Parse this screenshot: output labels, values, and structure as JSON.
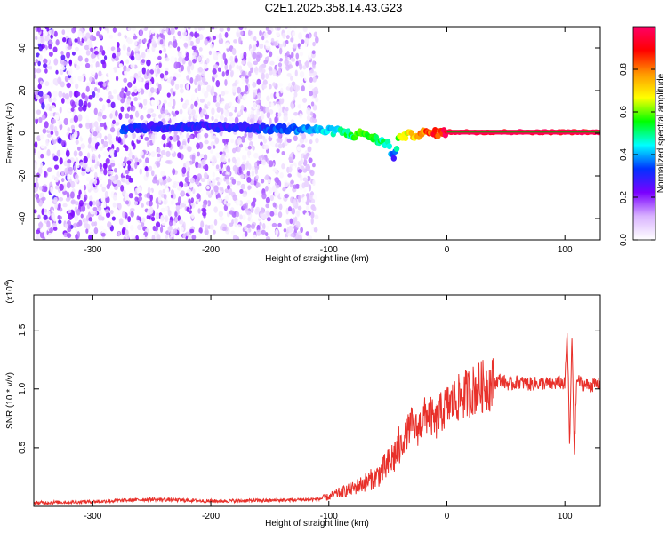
{
  "title": "C2E1.2025.358.14.43.G23",
  "chart_data": [
    {
      "type": "heatmap",
      "xlabel": "Height of straight line (km)",
      "ylabel": "Frequency (Hz)",
      "xlim": [
        -350,
        130
      ],
      "ylim": [
        -50,
        50
      ],
      "xticks": [
        -300,
        -200,
        -100,
        0,
        100
      ],
      "yticks": [
        -40,
        -20,
        0,
        20,
        40
      ],
      "colorbar": {
        "label": "Normalized spectral amplitude",
        "range": [
          0,
          1
        ],
        "ticks": [
          "0.0",
          "0.2",
          "0.4",
          "0.6",
          "0.8"
        ],
        "colors": [
          "#ffffff",
          "#d9b3ff",
          "#7a00ff",
          "#0033ff",
          "#00ffff",
          "#00ff00",
          "#ffff00",
          "#ff9900",
          "#ff0000",
          "#ff0066"
        ]
      },
      "noise_extent_x": [
        -350,
        -110
      ],
      "signal_track": [
        {
          "x": -275,
          "y": 2,
          "amp": 0.35
        },
        {
          "x": -250,
          "y": 3,
          "amp": 0.3
        },
        {
          "x": -170,
          "y": 3,
          "amp": 0.3
        },
        {
          "x": -150,
          "y": 2,
          "amp": 0.35
        },
        {
          "x": -120,
          "y": 2,
          "amp": 0.4
        },
        {
          "x": -100,
          "y": 1,
          "amp": 0.45
        },
        {
          "x": -90,
          "y": 1,
          "amp": 0.5
        },
        {
          "x": -80,
          "y": -1,
          "amp": 0.55
        },
        {
          "x": -70,
          "y": 0,
          "amp": 0.6
        },
        {
          "x": -60,
          "y": -3,
          "amp": 0.55
        },
        {
          "x": -50,
          "y": -5,
          "amp": 0.5
        },
        {
          "x": -45,
          "y": -12,
          "amp": 0.3
        },
        {
          "x": -40,
          "y": -1,
          "amp": 0.65
        },
        {
          "x": -30,
          "y": -1,
          "amp": 0.75
        },
        {
          "x": -20,
          "y": 0,
          "amp": 0.85
        },
        {
          "x": -10,
          "y": 0,
          "amp": 0.9
        },
        {
          "x": 0,
          "y": 0.5,
          "amp": 1.0
        },
        {
          "x": 50,
          "y": 0.5,
          "amp": 1.0
        },
        {
          "x": 100,
          "y": 0.5,
          "amp": 1.0
        },
        {
          "x": 130,
          "y": 0.5,
          "amp": 1.0
        }
      ]
    },
    {
      "type": "line",
      "xlabel": "Height of straight line (km)",
      "ylabel": "SNR (10 * v/v)",
      "y_multiplier": "(x10",
      "y_multiplier_exp": "4",
      "xlim": [
        -350,
        130
      ],
      "ylim": [
        0,
        18000
      ],
      "xticks": [
        -300,
        -200,
        -100,
        0,
        100
      ],
      "yticks": [
        5000,
        10000,
        15000
      ],
      "ytick_labels": [
        "0.5",
        "1.0",
        "1.5"
      ],
      "series": [
        {
          "color": "#e8302a",
          "x": [
            -350,
            -300,
            -250,
            -200,
            -150,
            -110,
            -100,
            -90,
            -80,
            -70,
            -60,
            -50,
            -40,
            -35,
            -30,
            -25,
            -20,
            -15,
            -10,
            -5,
            0,
            10,
            20,
            30,
            40,
            45,
            50,
            55,
            60,
            70,
            80,
            90,
            95,
            100,
            102,
            104,
            106,
            108,
            110,
            115,
            120,
            130
          ],
          "y": [
            300,
            400,
            600,
            450,
            500,
            600,
            800,
            1200,
            1500,
            2000,
            2500,
            3500,
            5000,
            6000,
            7000,
            6500,
            7500,
            8000,
            7000,
            8000,
            8500,
            9200,
            9800,
            10200,
            10500,
            10800,
            10500,
            10400,
            10600,
            10400,
            10500,
            10400,
            10600,
            10400,
            15000,
            5000,
            14500,
            4500,
            10800,
            10400,
            10300,
            10400
          ]
        }
      ]
    }
  ]
}
